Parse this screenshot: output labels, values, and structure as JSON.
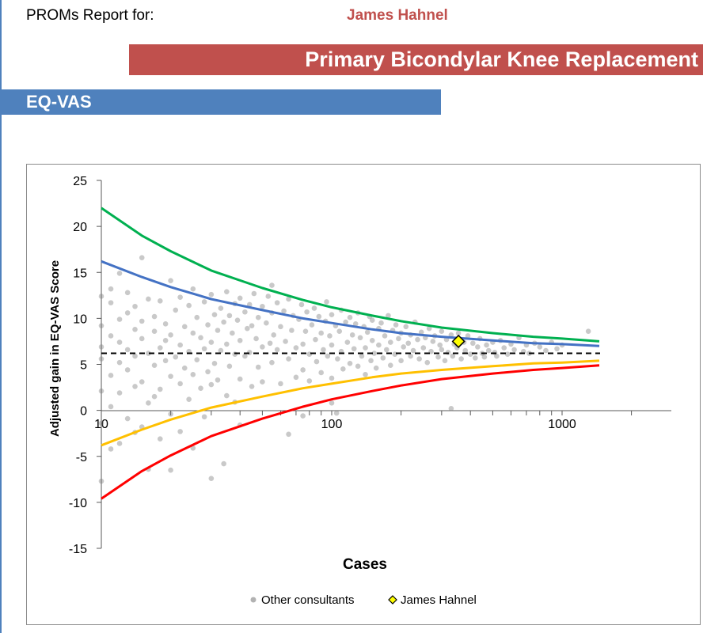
{
  "header": {
    "report_label": "PROMs Report for:",
    "consultant_name": "James Hahnel",
    "procedure": "Primary Bicondylar Knee Replacement",
    "section": "EQ-VAS"
  },
  "colors": {
    "banner_red": "#c0504d",
    "banner_blue": "#4f81bd",
    "upper_outer_limit": "#00b050",
    "upper_inner_limit": "#4472c4",
    "lower_inner_limit": "#ffc000",
    "lower_outer_limit": "#ff0000",
    "mean_line": "#000000",
    "other_points": "#7f7f7f",
    "highlight_point": "#ffff00"
  },
  "chart_data": {
    "type": "scatter",
    "title": "",
    "xlabel": "Cases",
    "ylabel": "Adjusted gain in EQ-VAS Score",
    "x_scale": "log",
    "xlim": [
      10,
      2000
    ],
    "ylim": [
      -15,
      25
    ],
    "x_ticks": [
      "10",
      "100",
      "1000"
    ],
    "y_ticks": [
      "25",
      "20",
      "15",
      "10",
      "5",
      "0",
      "-5",
      "-10",
      "-15"
    ],
    "mean": 6.2,
    "legend": {
      "placement": "bottom",
      "entries": [
        "Other consultants",
        "James Hahnel"
      ]
    },
    "control_limits": [
      {
        "role": "upper-outer",
        "color": "#00b050",
        "x": [
          10,
          15,
          20,
          30,
          50,
          75,
          100,
          150,
          200,
          300,
          500,
          750,
          1000,
          1450
        ],
        "y": [
          22.0,
          19.0,
          17.3,
          15.2,
          13.3,
          12.0,
          11.2,
          10.3,
          9.7,
          9.0,
          8.4,
          8.0,
          7.8,
          7.5
        ]
      },
      {
        "role": "upper-inner",
        "color": "#4472c4",
        "x": [
          10,
          15,
          20,
          30,
          50,
          75,
          100,
          150,
          200,
          300,
          500,
          750,
          1000,
          1450
        ],
        "y": [
          16.2,
          14.5,
          13.4,
          12.1,
          10.9,
          10.0,
          9.5,
          8.8,
          8.4,
          8.0,
          7.6,
          7.3,
          7.2,
          7.0
        ]
      },
      {
        "role": "lower-inner",
        "color": "#ffc000",
        "x": [
          10,
          15,
          20,
          30,
          50,
          75,
          100,
          150,
          200,
          300,
          500,
          750,
          1000,
          1450
        ],
        "y": [
          -3.8,
          -2.1,
          -1.0,
          0.3,
          1.5,
          2.4,
          2.9,
          3.6,
          4.0,
          4.4,
          4.8,
          5.1,
          5.2,
          5.4
        ]
      },
      {
        "role": "lower-outer",
        "color": "#ff0000",
        "x": [
          10,
          15,
          20,
          30,
          50,
          75,
          100,
          150,
          200,
          300,
          500,
          750,
          1000,
          1450
        ],
        "y": [
          -9.6,
          -6.6,
          -4.9,
          -2.8,
          -0.9,
          0.4,
          1.2,
          2.1,
          2.7,
          3.4,
          4.0,
          4.4,
          4.6,
          4.9
        ]
      }
    ],
    "series": [
      {
        "name": "Other consultants",
        "color": "#7f7f7f",
        "points": [
          [
            10,
            12.4
          ],
          [
            10,
            9.2
          ],
          [
            10,
            5.6
          ],
          [
            10,
            2.1
          ],
          [
            10,
            -1.4
          ],
          [
            10,
            -7.7
          ],
          [
            10,
            6.9
          ],
          [
            11,
            11.7
          ],
          [
            11,
            3.8
          ],
          [
            11,
            8.1
          ],
          [
            11,
            -4.2
          ],
          [
            11,
            0.4
          ],
          [
            11,
            13.2
          ],
          [
            12,
            14.9
          ],
          [
            12,
            7.4
          ],
          [
            12,
            1.9
          ],
          [
            12,
            -3.6
          ],
          [
            12,
            9.9
          ],
          [
            12,
            5.2
          ],
          [
            13,
            10.6
          ],
          [
            13,
            4.4
          ],
          [
            13,
            -0.9
          ],
          [
            13,
            12.8
          ],
          [
            13,
            6.6
          ],
          [
            14,
            8.8
          ],
          [
            14,
            2.6
          ],
          [
            14,
            -2.4
          ],
          [
            14,
            11.3
          ],
          [
            14,
            5.9
          ],
          [
            15,
            16.6
          ],
          [
            15,
            7.8
          ],
          [
            15,
            3.1
          ],
          [
            15,
            -1.8
          ],
          [
            15,
            9.7
          ],
          [
            16,
            12.1
          ],
          [
            16,
            6.2
          ],
          [
            16,
            0.8
          ],
          [
            16,
            -6.4
          ],
          [
            17,
            10.2
          ],
          [
            17,
            4.9
          ],
          [
            17,
            8.6
          ],
          [
            17,
            1.5
          ],
          [
            18,
            11.9
          ],
          [
            18,
            6.8
          ],
          [
            18,
            2.3
          ],
          [
            18,
            -3.1
          ],
          [
            19,
            9.4
          ],
          [
            19,
            5.4
          ],
          [
            19,
            7.6
          ],
          [
            20,
            14.1
          ],
          [
            20,
            8.2
          ],
          [
            20,
            3.7
          ],
          [
            20,
            -0.4
          ],
          [
            20,
            -6.5
          ],
          [
            21,
            10.9
          ],
          [
            21,
            5.8
          ],
          [
            22,
            12.3
          ],
          [
            22,
            7.1
          ],
          [
            22,
            2.9
          ],
          [
            22,
            -2.3
          ],
          [
            23,
            9.1
          ],
          [
            23,
            4.6
          ],
          [
            24,
            11.4
          ],
          [
            24,
            6.4
          ],
          [
            24,
            1.2
          ],
          [
            25,
            13.2
          ],
          [
            25,
            8.4
          ],
          [
            25,
            3.9
          ],
          [
            25,
            -4.1
          ],
          [
            26,
            10.1
          ],
          [
            26,
            5.5
          ],
          [
            27,
            7.9
          ],
          [
            27,
            2.4
          ],
          [
            28,
            11.8
          ],
          [
            28,
            6.7
          ],
          [
            28,
            -0.7
          ],
          [
            29,
            9.3
          ],
          [
            29,
            4.2
          ],
          [
            30,
            12.6
          ],
          [
            30,
            7.4
          ],
          [
            30,
            2.8
          ],
          [
            30,
            -7.4
          ],
          [
            31,
            10.4
          ],
          [
            31,
            5.1
          ],
          [
            32,
            8.7
          ],
          [
            32,
            3.3
          ],
          [
            33,
            11.1
          ],
          [
            33,
            6.5
          ],
          [
            34,
            9.6
          ],
          [
            34,
            -5.8
          ],
          [
            35,
            12.9
          ],
          [
            35,
            7.2
          ],
          [
            35,
            1.6
          ],
          [
            36,
            10.3
          ],
          [
            36,
            4.8
          ],
          [
            37,
            8.4
          ],
          [
            38,
            11.6
          ],
          [
            38,
            6.1
          ],
          [
            38,
            0.9
          ],
          [
            39,
            9.8
          ],
          [
            40,
            12.2
          ],
          [
            40,
            7.6
          ],
          [
            40,
            3.4
          ],
          [
            40,
            -1.6
          ],
          [
            42,
            10.7
          ],
          [
            42,
            5.9
          ],
          [
            43,
            8.9
          ],
          [
            44,
            11.5
          ],
          [
            44,
            6.3
          ],
          [
            45,
            9.2
          ],
          [
            45,
            2.6
          ],
          [
            46,
            12.7
          ],
          [
            47,
            7.8
          ],
          [
            48,
            10.1
          ],
          [
            48,
            4.7
          ],
          [
            50,
            11.3
          ],
          [
            50,
            6.9
          ],
          [
            50,
            3.1
          ],
          [
            52,
            9.5
          ],
          [
            53,
            12.4
          ],
          [
            54,
            7.3
          ],
          [
            55,
            10.6
          ],
          [
            55,
            5.2
          ],
          [
            56,
            8.2
          ],
          [
            58,
            11.7
          ],
          [
            58,
            6.6
          ],
          [
            60,
            9.1
          ],
          [
            60,
            2.9
          ],
          [
            62,
            10.8
          ],
          [
            63,
            7.5
          ],
          [
            65,
            12.1
          ],
          [
            65,
            5.6
          ],
          [
            67,
            8.7
          ],
          [
            68,
            10.3
          ],
          [
            70,
            6.8
          ],
          [
            70,
            3.6
          ],
          [
            72,
            9.9
          ],
          [
            74,
            11.5
          ],
          [
            75,
            7.2
          ],
          [
            75,
            4.4
          ],
          [
            77,
            8.6
          ],
          [
            78,
            10.7
          ],
          [
            80,
            6.1
          ],
          [
            80,
            3.2
          ],
          [
            82,
            9.3
          ],
          [
            84,
            11.1
          ],
          [
            85,
            7.7
          ],
          [
            86,
            5.3
          ],
          [
            88,
            10.2
          ],
          [
            90,
            8.4
          ],
          [
            90,
            4.1
          ],
          [
            92,
            6.6
          ],
          [
            94,
            9.7
          ],
          [
            95,
            11.8
          ],
          [
            96,
            5.9
          ],
          [
            98,
            8.1
          ],
          [
            100,
            10.4
          ],
          [
            100,
            7.1
          ],
          [
            100,
            3.5
          ],
          [
            100,
            0.8
          ],
          [
            104,
            9.2
          ],
          [
            106,
            5.6
          ],
          [
            108,
            8.6
          ],
          [
            110,
            10.9
          ],
          [
            110,
            6.4
          ],
          [
            112,
            4.5
          ],
          [
            115,
            9.6
          ],
          [
            117,
            7.4
          ],
          [
            120,
            5.1
          ],
          [
            120,
            10.1
          ],
          [
            123,
            8.2
          ],
          [
            125,
            6.7
          ],
          [
            127,
            9.4
          ],
          [
            130,
            4.8
          ],
          [
            130,
            10.6
          ],
          [
            133,
            7.9
          ],
          [
            135,
            5.9
          ],
          [
            138,
            9.1
          ],
          [
            140,
            6.8
          ],
          [
            140,
            3.9
          ],
          [
            143,
            8.5
          ],
          [
            146,
            10.2
          ],
          [
            148,
            5.4
          ],
          [
            150,
            7.6
          ],
          [
            150,
            9.8
          ],
          [
            153,
            6.2
          ],
          [
            156,
            4.6
          ],
          [
            160,
            8.9
          ],
          [
            160,
            7.1
          ],
          [
            164,
            9.5
          ],
          [
            167,
            5.7
          ],
          [
            170,
            8.1
          ],
          [
            173,
            6.6
          ],
          [
            176,
            10.3
          ],
          [
            180,
            7.4
          ],
          [
            180,
            4.9
          ],
          [
            184,
            8.7
          ],
          [
            188,
            6.1
          ],
          [
            190,
            9.3
          ],
          [
            195,
            7.8
          ],
          [
            200,
            5.4
          ],
          [
            200,
            8.4
          ],
          [
            205,
            6.9
          ],
          [
            210,
            9.1
          ],
          [
            215,
            7.3
          ],
          [
            220,
            5.9
          ],
          [
            220,
            8.2
          ],
          [
            226,
            6.5
          ],
          [
            230,
            9.6
          ],
          [
            236,
            7.7
          ],
          [
            240,
            5.6
          ],
          [
            245,
            8.5
          ],
          [
            250,
            6.8
          ],
          [
            255,
            7.9
          ],
          [
            260,
            5.2
          ],
          [
            265,
            8.9
          ],
          [
            270,
            6.4
          ],
          [
            275,
            7.5
          ],
          [
            280,
            8.1
          ],
          [
            290,
            5.8
          ],
          [
            295,
            7.1
          ],
          [
            300,
            6.6
          ],
          [
            300,
            8.6
          ],
          [
            310,
            5.4
          ],
          [
            315,
            7.7
          ],
          [
            320,
            6.3
          ],
          [
            330,
            8.2
          ],
          [
            335,
            5.9
          ],
          [
            340,
            7.2
          ],
          [
            350,
            6.8
          ],
          [
            355,
            8.4
          ],
          [
            365,
            5.6
          ],
          [
            375,
            7.4
          ],
          [
            380,
            6.5
          ],
          [
            390,
            8.1
          ],
          [
            400,
            6.1
          ],
          [
            410,
            7.3
          ],
          [
            420,
            5.7
          ],
          [
            430,
            6.9
          ],
          [
            440,
            7.8
          ],
          [
            450,
            6.2
          ],
          [
            460,
            5.8
          ],
          [
            470,
            7.1
          ],
          [
            480,
            6.5
          ],
          [
            500,
            7.4
          ],
          [
            510,
            6.3
          ],
          [
            520,
            5.9
          ],
          [
            540,
            7.6
          ],
          [
            560,
            6.8
          ],
          [
            580,
            6.1
          ],
          [
            600,
            7.2
          ],
          [
            620,
            6.6
          ],
          [
            650,
            7.9
          ],
          [
            680,
            6.4
          ],
          [
            700,
            7.1
          ],
          [
            720,
            6.2
          ],
          [
            760,
            7.3
          ],
          [
            800,
            6.9
          ],
          [
            850,
            6.5
          ],
          [
            900,
            7.4
          ],
          [
            950,
            6.7
          ],
          [
            1000,
            7.1
          ],
          [
            1300,
            8.6
          ],
          [
            330,
            0.2
          ],
          [
            75,
            -0.6
          ],
          [
            105,
            -0.3
          ],
          [
            55,
            13.6
          ],
          [
            65,
            -2.6
          ]
        ]
      },
      {
        "name": "James Hahnel",
        "color": "#ffff00",
        "points": [
          [
            355,
            7.5
          ]
        ]
      }
    ]
  }
}
